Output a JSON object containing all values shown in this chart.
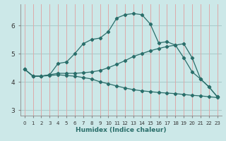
{
  "xlabel": "Humidex (Indice chaleur)",
  "background_color": "#cce8e8",
  "grid_color_h": "#aacccc",
  "grid_color_v": "#ddaaaa",
  "line_color": "#2a6e6a",
  "x_ticks": [
    0,
    1,
    2,
    3,
    4,
    5,
    6,
    7,
    8,
    9,
    10,
    11,
    12,
    13,
    14,
    15,
    16,
    17,
    18,
    19,
    20,
    21,
    22,
    23
  ],
  "ylim": [
    2.8,
    6.75
  ],
  "xlim": [
    -0.5,
    23.5
  ],
  "yticks": [
    3,
    4,
    5,
    6
  ],
  "series": [
    {
      "x": [
        0,
        1,
        2,
        3,
        4,
        5,
        6,
        7,
        8,
        9,
        10,
        11,
        12,
        13,
        14,
        15,
        16,
        17,
        18,
        19,
        20,
        21,
        22,
        23
      ],
      "y": [
        4.45,
        4.2,
        4.2,
        4.25,
        4.65,
        4.7,
        5.0,
        5.35,
        5.5,
        5.55,
        5.78,
        6.26,
        6.38,
        6.42,
        6.38,
        6.05,
        5.38,
        5.42,
        5.3,
        4.85,
        4.35,
        4.1,
        3.82,
        3.47
      ]
    },
    {
      "x": [
        0,
        1,
        2,
        3,
        4,
        5,
        6,
        7,
        8,
        9,
        10,
        11,
        12,
        13,
        14,
        15,
        16,
        17,
        18,
        19,
        20,
        21,
        22,
        23
      ],
      "y": [
        4.45,
        4.2,
        4.2,
        4.25,
        4.3,
        4.3,
        4.3,
        4.32,
        4.35,
        4.4,
        4.5,
        4.62,
        4.75,
        4.9,
        5.0,
        5.1,
        5.18,
        5.25,
        5.3,
        5.35,
        4.85,
        4.1,
        3.82,
        3.47
      ]
    },
    {
      "x": [
        0,
        1,
        2,
        3,
        4,
        5,
        6,
        7,
        8,
        9,
        10,
        11,
        12,
        13,
        14,
        15,
        16,
        17,
        18,
        19,
        20,
        21,
        22,
        23
      ],
      "y": [
        4.45,
        4.2,
        4.2,
        4.22,
        4.25,
        4.22,
        4.2,
        4.15,
        4.1,
        4.0,
        3.93,
        3.85,
        3.78,
        3.72,
        3.68,
        3.65,
        3.62,
        3.6,
        3.58,
        3.55,
        3.52,
        3.5,
        3.47,
        3.44
      ]
    }
  ]
}
